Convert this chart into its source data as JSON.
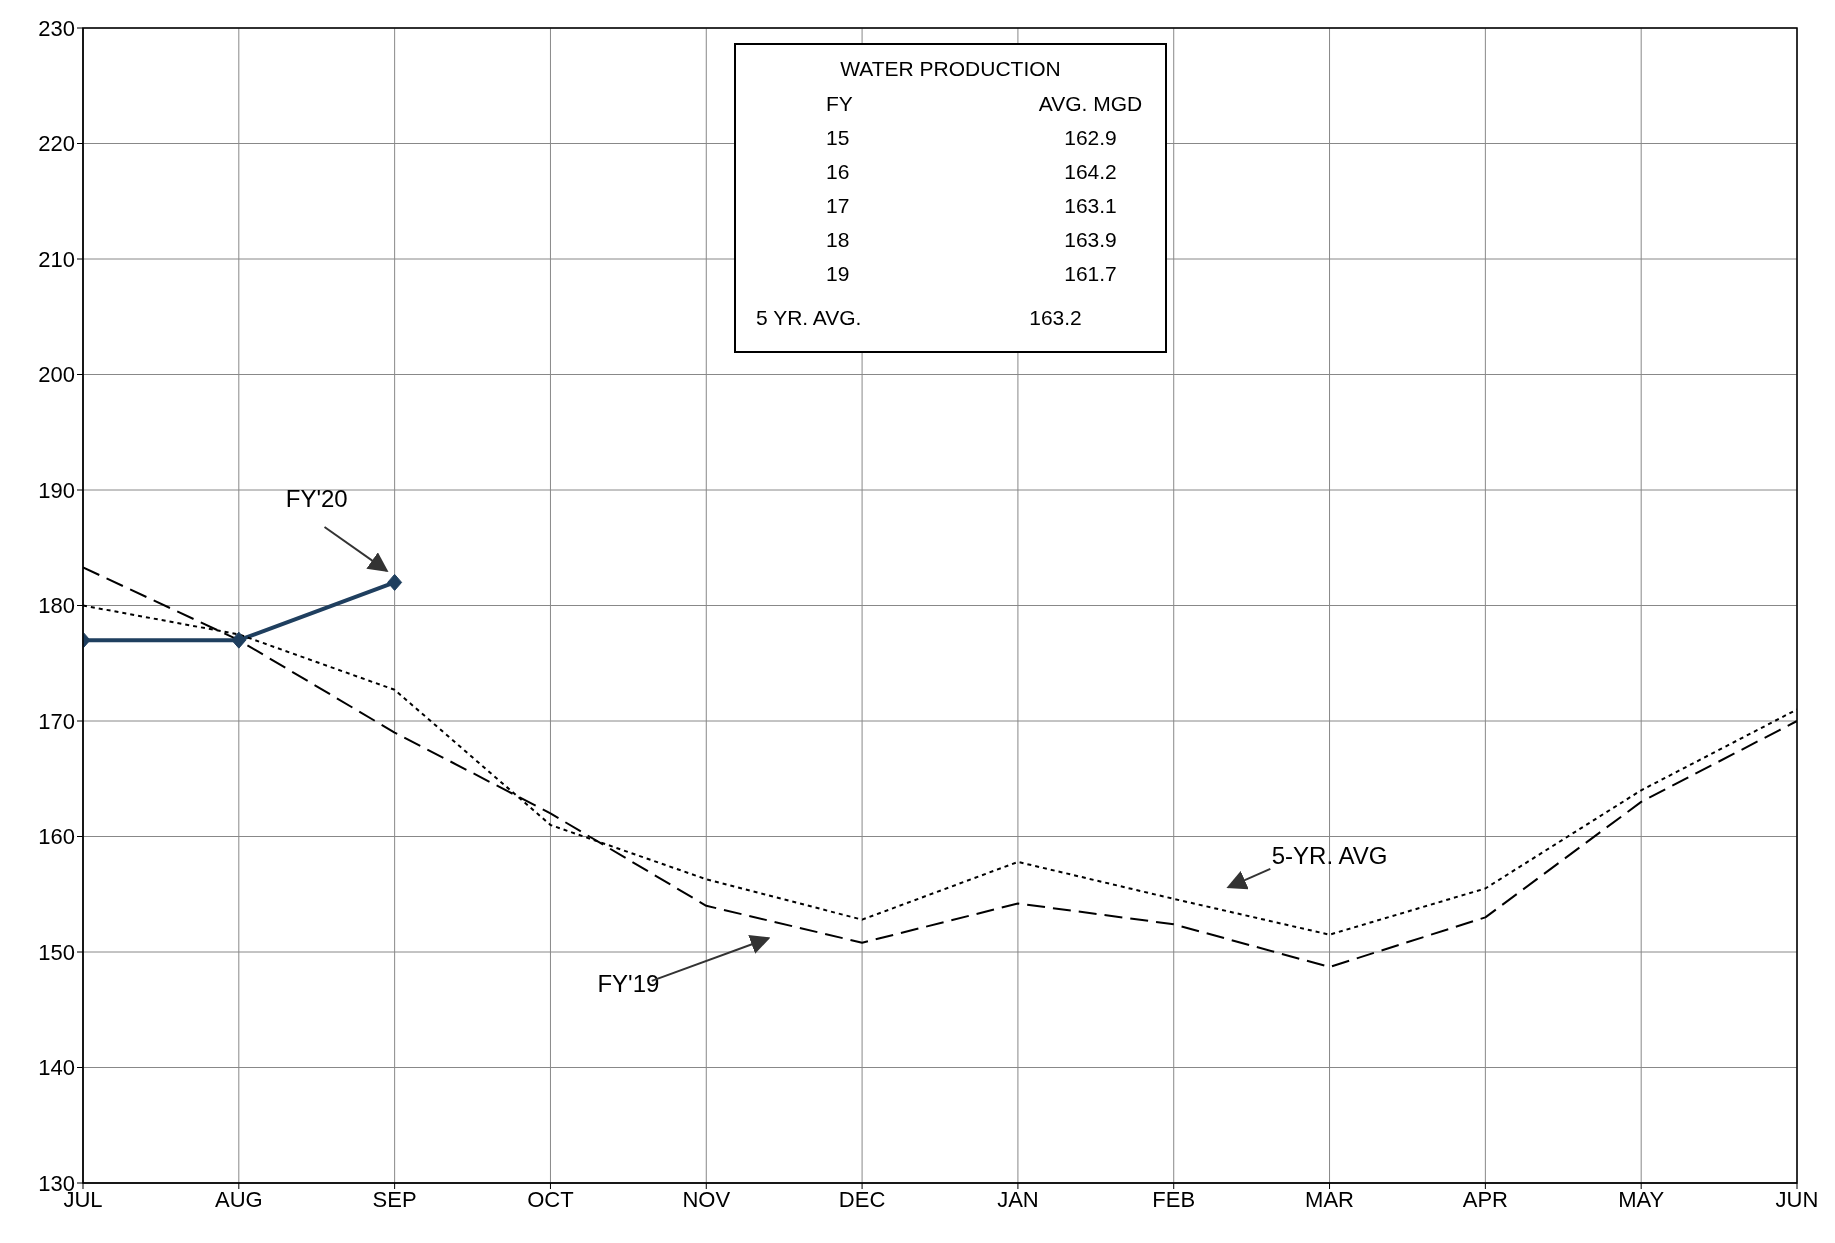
{
  "chart_data": {
    "type": "line",
    "categories": [
      "JUL",
      "AUG",
      "SEP",
      "OCT",
      "NOV",
      "DEC",
      "JAN",
      "FEB",
      "MAR",
      "APR",
      "MAY",
      "JUN"
    ],
    "series": [
      {
        "name": "FY'20",
        "color": "#1f3f5f",
        "marker": "diamond",
        "line_style": "solid",
        "values": [
          177,
          177,
          182,
          null,
          null,
          null,
          null,
          null,
          null,
          null,
          null,
          null
        ]
      },
      {
        "name": "FY'19",
        "color": "#000000",
        "marker": "none",
        "line_style": "dashed",
        "values": [
          183.3,
          177,
          169,
          162,
          154,
          150.8,
          154.2,
          152.4,
          148.7,
          153,
          163,
          170
        ]
      },
      {
        "name": "5-YR. AVG",
        "color": "#000000",
        "marker": "none",
        "line_style": "dotted",
        "values": [
          180,
          177.5,
          172.7,
          161,
          156.3,
          152.8,
          157.8,
          154.6,
          151.5,
          155.5,
          164,
          171
        ]
      }
    ],
    "ylim": [
      130,
      230
    ],
    "yticks": [
      130,
      140,
      150,
      160,
      170,
      180,
      190,
      200,
      210,
      220,
      230
    ],
    "grid": true,
    "annotations": [
      "WATER PRODUCTION",
      "FY",
      "AVG. MGD",
      "15",
      "162.9",
      "16",
      "164.2",
      "17",
      "163.1",
      "18",
      "163.9",
      "19",
      "161.7",
      "5 YR. AVG.",
      "163.2"
    ]
  }
}
